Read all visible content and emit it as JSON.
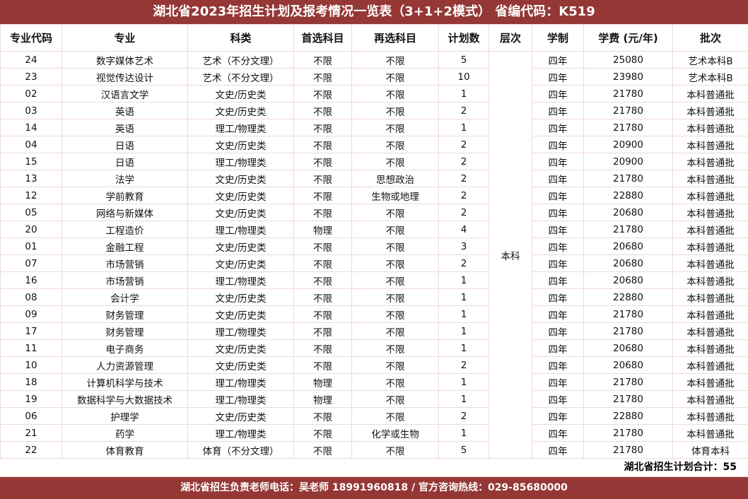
{
  "title": "湖北省2023年招生计划及报考情况一览表（3+1+2模式） 省编代码：K519",
  "headers": [
    "专业代码",
    "专业",
    "科类",
    "首选科目",
    "再选科目",
    "计划数",
    "层次",
    "学制",
    "学费 (元/年)",
    "批次"
  ],
  "level": "本科",
  "rows": [
    [
      "24",
      "数字媒体艺术",
      "艺术（不分文理）",
      "不限",
      "不限",
      "5",
      "四年",
      "25080",
      "艺术本科B"
    ],
    [
      "23",
      "视觉传达设计",
      "艺术（不分文理）",
      "不限",
      "不限",
      "10",
      "四年",
      "23980",
      "艺术本科B"
    ],
    [
      "02",
      "汉语言文学",
      "文史/历史类",
      "不限",
      "不限",
      "1",
      "四年",
      "21780",
      "本科普通批"
    ],
    [
      "03",
      "英语",
      "文史/历史类",
      "不限",
      "不限",
      "2",
      "四年",
      "21780",
      "本科普通批"
    ],
    [
      "14",
      "英语",
      "理工/物理类",
      "不限",
      "不限",
      "1",
      "四年",
      "21780",
      "本科普通批"
    ],
    [
      "04",
      "日语",
      "文史/历史类",
      "不限",
      "不限",
      "2",
      "四年",
      "20900",
      "本科普通批"
    ],
    [
      "15",
      "日语",
      "理工/物理类",
      "不限",
      "不限",
      "2",
      "四年",
      "20900",
      "本科普通批"
    ],
    [
      "13",
      "法学",
      "文史/历史类",
      "不限",
      "思想政治",
      "2",
      "四年",
      "21780",
      "本科普通批"
    ],
    [
      "12",
      "学前教育",
      "文史/历史类",
      "不限",
      "生物或地理",
      "2",
      "四年",
      "22880",
      "本科普通批"
    ],
    [
      "05",
      "网络与新媒体",
      "文史/历史类",
      "不限",
      "不限",
      "2",
      "四年",
      "20680",
      "本科普通批"
    ],
    [
      "20",
      "工程造价",
      "理工/物理类",
      "物理",
      "不限",
      "4",
      "四年",
      "21780",
      "本科普通批"
    ],
    [
      "01",
      "金融工程",
      "文史/历史类",
      "不限",
      "不限",
      "3",
      "四年",
      "20680",
      "本科普通批"
    ],
    [
      "07",
      "市场营销",
      "文史/历史类",
      "不限",
      "不限",
      "2",
      "四年",
      "20680",
      "本科普通批"
    ],
    [
      "16",
      "市场营销",
      "理工/物理类",
      "不限",
      "不限",
      "1",
      "四年",
      "20680",
      "本科普通批"
    ],
    [
      "08",
      "会计学",
      "文史/历史类",
      "不限",
      "不限",
      "1",
      "四年",
      "22880",
      "本科普通批"
    ],
    [
      "09",
      "财务管理",
      "文史/历史类",
      "不限",
      "不限",
      "1",
      "四年",
      "21780",
      "本科普通批"
    ],
    [
      "17",
      "财务管理",
      "理工/物理类",
      "不限",
      "不限",
      "1",
      "四年",
      "21780",
      "本科普通批"
    ],
    [
      "11",
      "电子商务",
      "文史/历史类",
      "不限",
      "不限",
      "1",
      "四年",
      "20680",
      "本科普通批"
    ],
    [
      "10",
      "人力资源管理",
      "文史/历史类",
      "不限",
      "不限",
      "2",
      "四年",
      "20680",
      "本科普通批"
    ],
    [
      "18",
      "计算机科学与技术",
      "理工/物理类",
      "物理",
      "不限",
      "1",
      "四年",
      "21780",
      "本科普通批"
    ],
    [
      "19",
      "数据科学与大数据技术",
      "理工/物理类",
      "物理",
      "不限",
      "1",
      "四年",
      "21780",
      "本科普通批"
    ],
    [
      "06",
      "护理学",
      "文史/历史类",
      "不限",
      "不限",
      "2",
      "四年",
      "22880",
      "本科普通批"
    ],
    [
      "21",
      "药学",
      "理工/物理类",
      "不限",
      "化学或生物",
      "1",
      "四年",
      "21780",
      "本科普通批"
    ],
    [
      "22",
      "体育教育",
      "体育（不分文理）",
      "不限",
      "不限",
      "5",
      "四年",
      "21780",
      "体育本科"
    ]
  ],
  "total": "湖北省招生计划合计：55",
  "footer": "湖北省招生负责老师电话：吴老师 18991960818 / 官方咨询热线：029-85680000",
  "colors": {
    "banner": "#953735",
    "grid": "#f0d8d8"
  }
}
